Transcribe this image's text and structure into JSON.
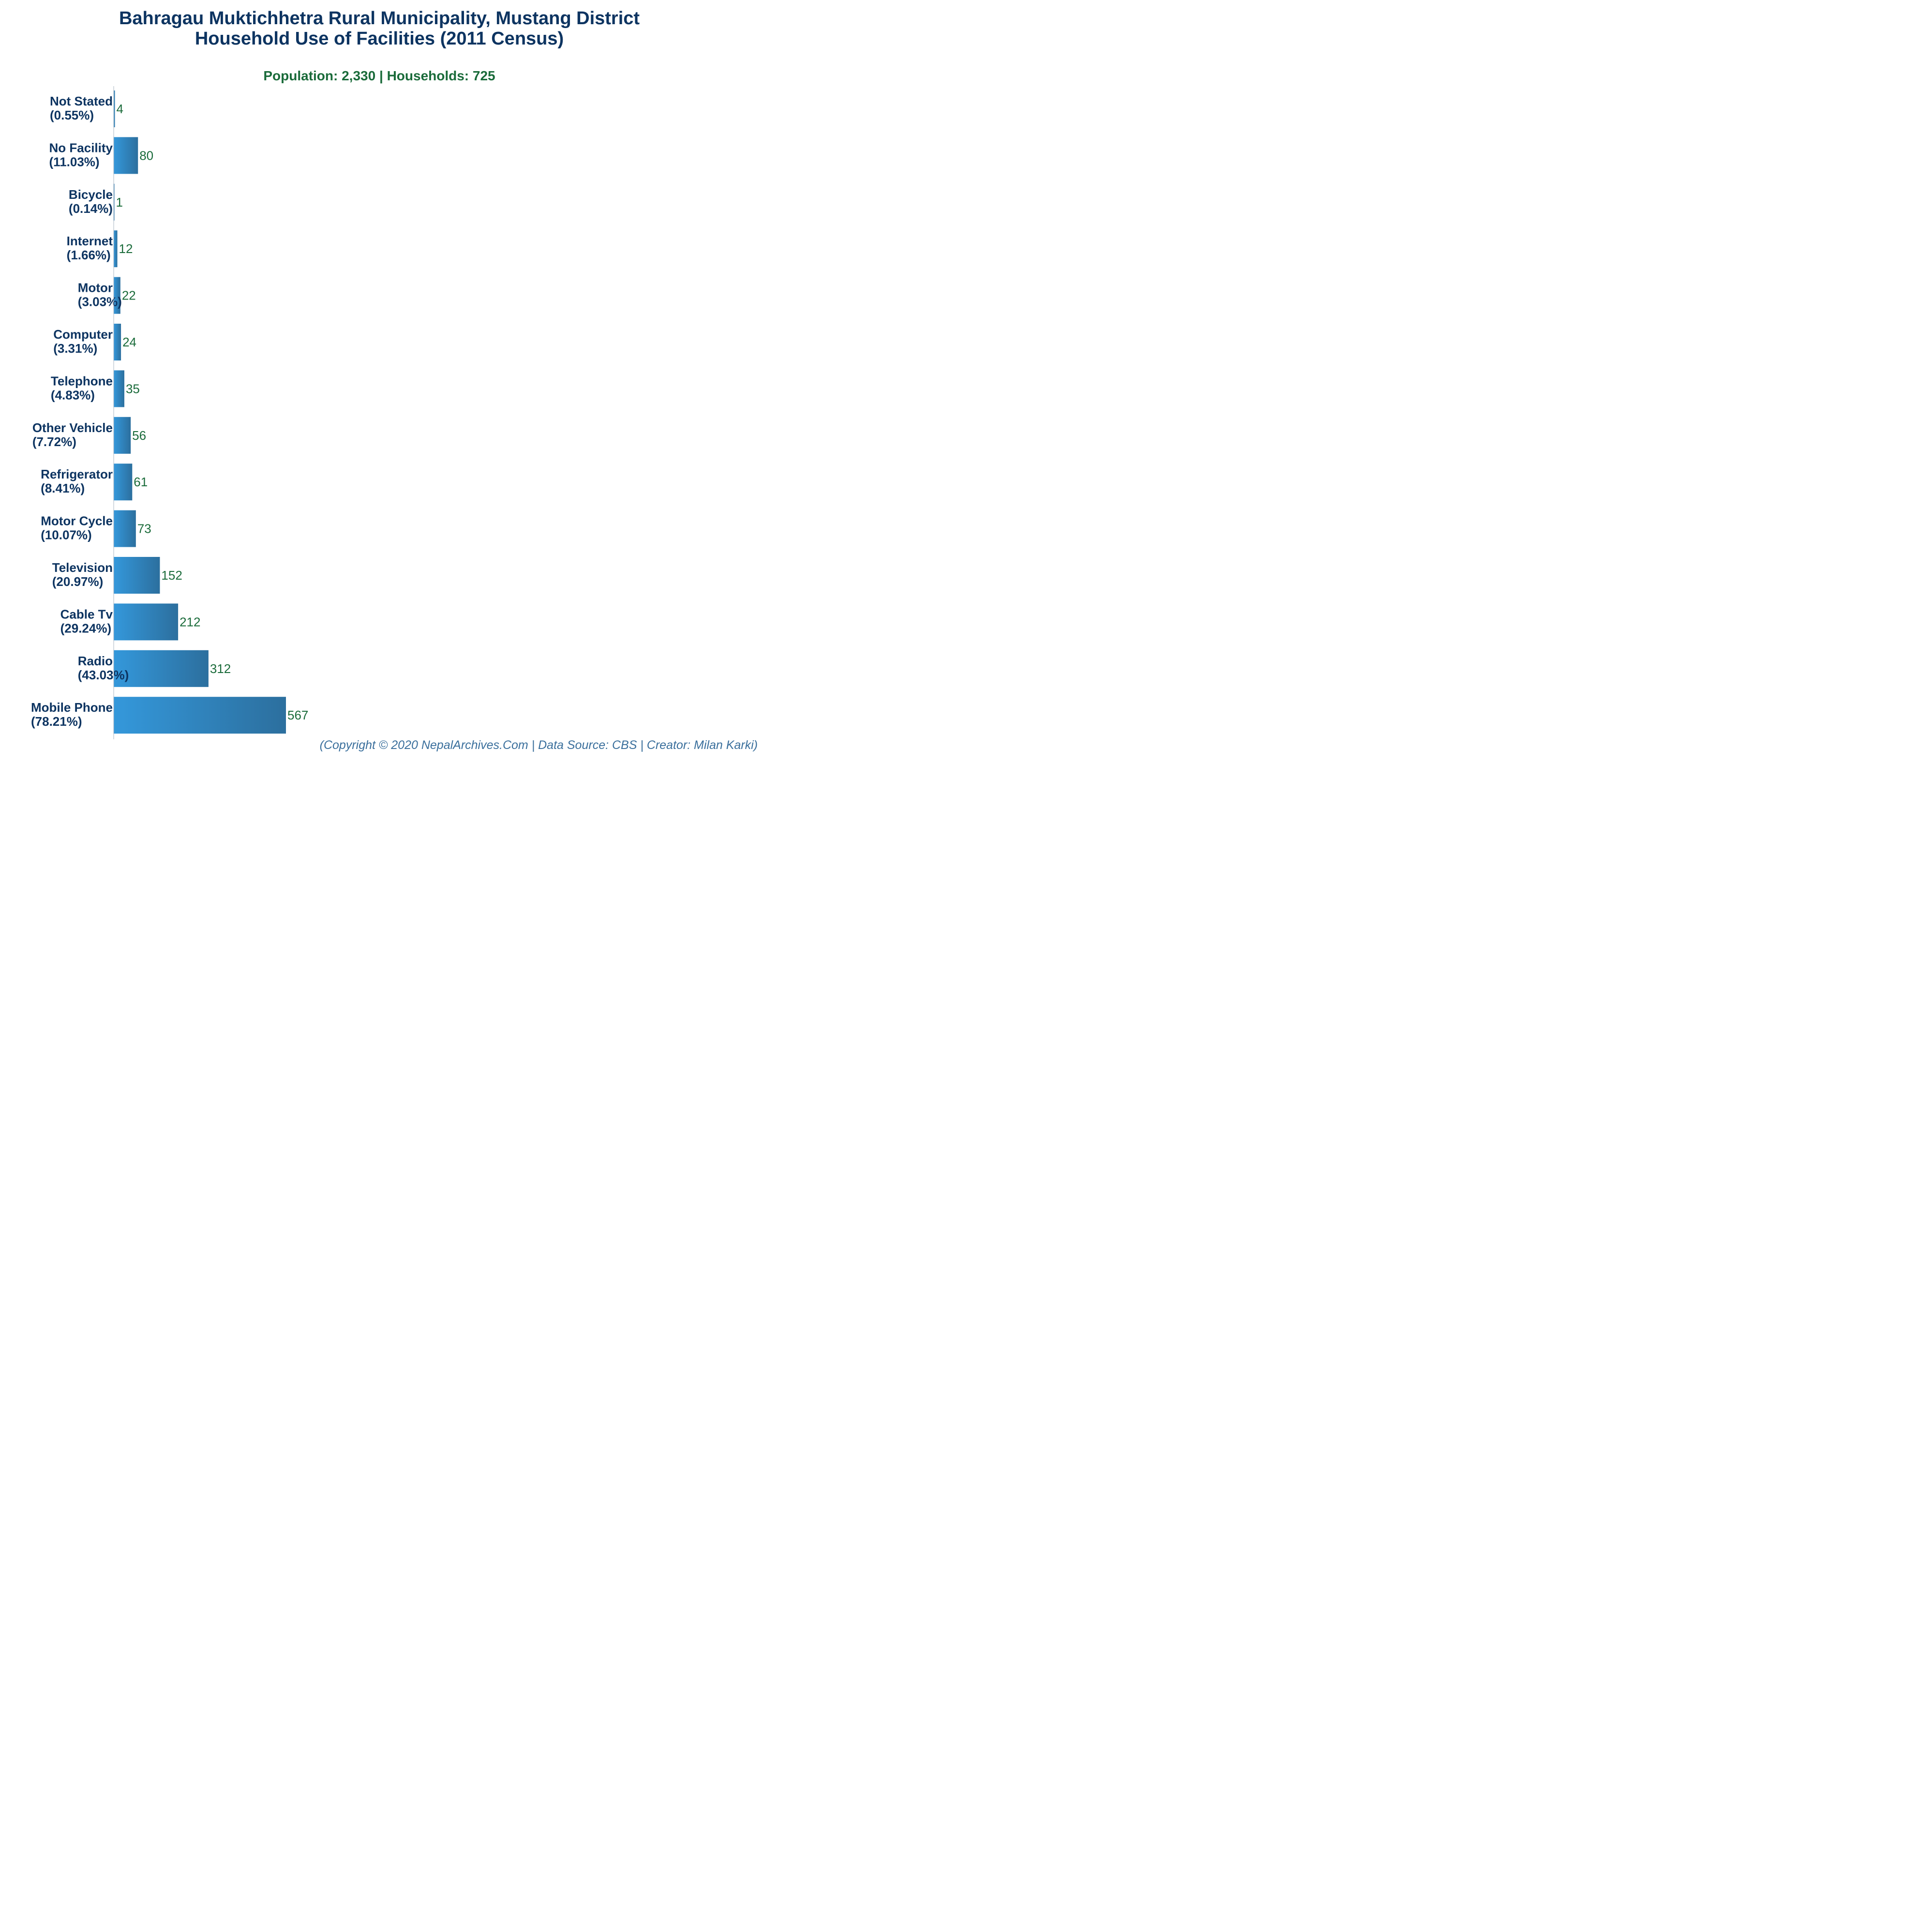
{
  "chart_data": {
    "type": "bar",
    "orientation": "horizontal",
    "title": "Bahragau Muktichhetra Rural Municipality, Mustang District",
    "title_line2": "Household Use of Facilities (2011 Census)",
    "subtitle": "Population: 2,330 | Households: 725",
    "footer": "(Copyright © 2020 NepalArchives.Com | Data Source: CBS | Creator: Milan Karki)",
    "categories": [
      "Not Stated",
      "No Facility",
      "Bicycle",
      "Internet",
      "Motor",
      "Computer",
      "Telephone",
      "Other Vehicle",
      "Refrigerator",
      "Motor Cycle",
      "Television",
      "Cable Tv",
      "Radio",
      "Mobile Phone"
    ],
    "percent_labels": [
      "(0.55%)",
      "(11.03%)",
      "(0.14%)",
      "(1.66%)",
      "(3.03%)",
      "(3.31%)",
      "(4.83%)",
      "(7.72%)",
      "(8.41%)",
      "(10.07%)",
      "(20.97%)",
      "(29.24%)",
      "(43.03%)",
      "(78.21%)"
    ],
    "values": [
      4,
      80,
      1,
      12,
      22,
      24,
      35,
      56,
      61,
      73,
      152,
      212,
      312,
      567
    ],
    "xlim": [
      0,
      567
    ],
    "xlabel": "",
    "ylabel": "",
    "grid": false,
    "legend": "none",
    "colors": {
      "bar_left": "#3498db",
      "bar_right": "#2c6f9e",
      "title": "#0d3461",
      "subtitle": "#1a6b3a",
      "value_label": "#1a6b3a",
      "axis": "#aab4c0",
      "footer": "#3a6f9c"
    }
  }
}
